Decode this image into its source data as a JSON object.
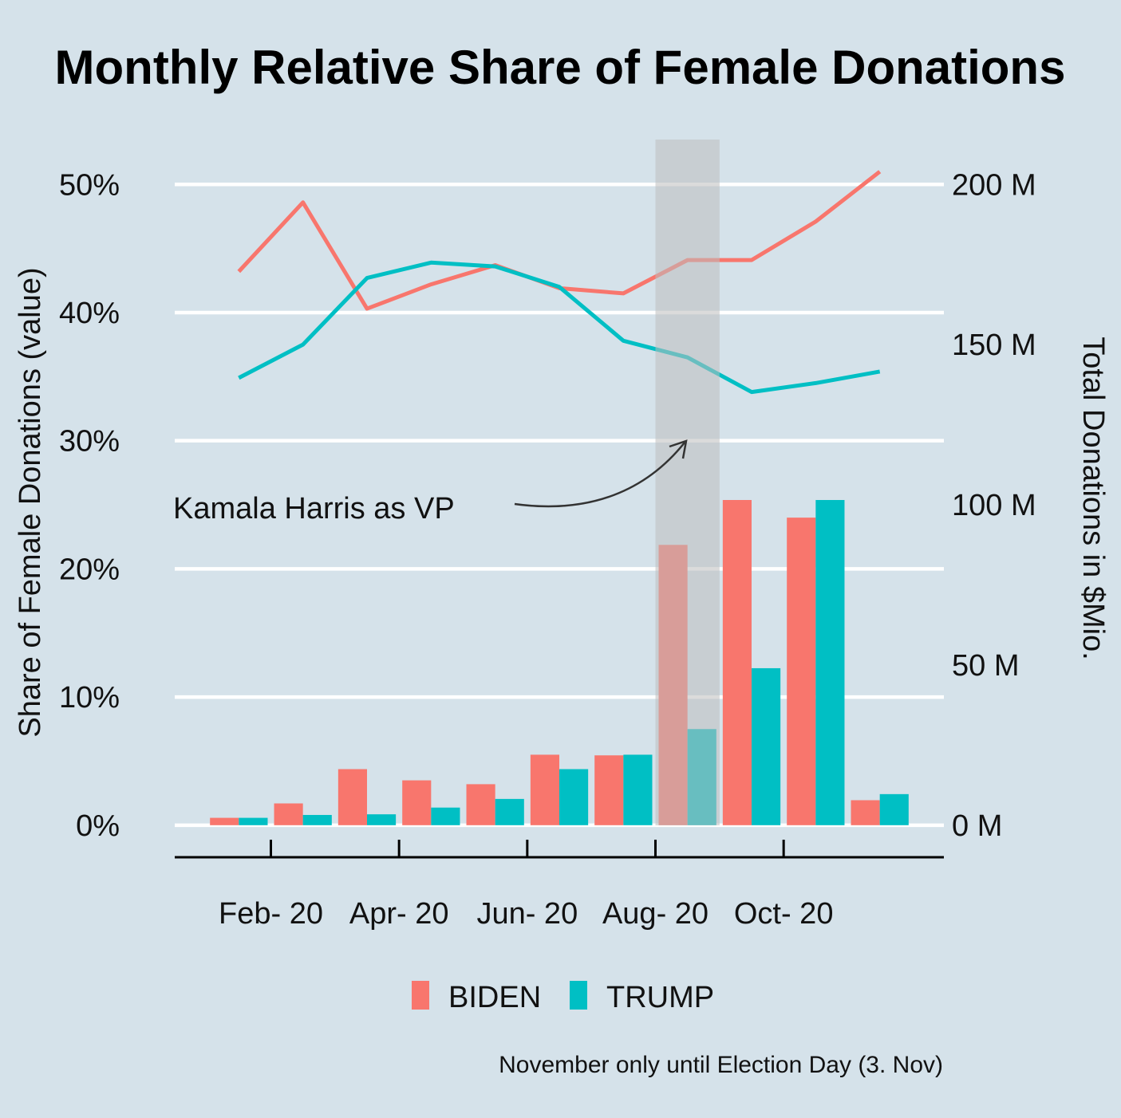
{
  "chart_data": {
    "type": "bar",
    "title": "Monthly Relative Share of Female Donations",
    "ylabel_left": "Share of Female Donations (value)",
    "ylabel_right": "Total Donations in $Mio.",
    "caption": "November only until Election Day (3. Nov)",
    "categories": [
      "2020-01",
      "2020-02",
      "2020-03",
      "2020-04",
      "2020-05",
      "2020-06",
      "2020-07",
      "2020-08",
      "2020-09",
      "2020-10",
      "2020-11"
    ],
    "x_ticks": [
      {
        "category": "2020-02",
        "label": "Feb- 20"
      },
      {
        "category": "2020-04",
        "label": "Apr- 20"
      },
      {
        "category": "2020-06",
        "label": "Jun- 20"
      },
      {
        "category": "2020-08",
        "label": "Aug- 20"
      },
      {
        "category": "2020-10",
        "label": "Oct- 20"
      }
    ],
    "y_left": {
      "ylim": [
        -2.5,
        53.5
      ],
      "ticks": [
        0,
        10,
        20,
        30,
        40,
        50
      ],
      "tick_labels": [
        "0%",
        "10%",
        "20%",
        "30%",
        "40%",
        "50%"
      ]
    },
    "y_right": {
      "ylim": [
        -10,
        214
      ],
      "ticks": [
        0,
        50,
        100,
        150,
        200
      ],
      "tick_labels": [
        "0 M",
        "50 M",
        "100 M",
        "150 M",
        "200 M"
      ]
    },
    "grid": true,
    "legend": {
      "position": "bottom",
      "entries": [
        "BIDEN",
        "TRUMP"
      ]
    },
    "series": [
      {
        "name": "BIDEN",
        "color": "#f8766d",
        "bar_values_mio": [
          2.3,
          6.8,
          17.5,
          14,
          12.8,
          22,
          21.8,
          87.5,
          101.5,
          96,
          7.8
        ],
        "share_values_pct": [
          43.2,
          48.6,
          40.3,
          42.2,
          43.7,
          41.9,
          41.5,
          44.1,
          44.1,
          47.1,
          51.0
        ]
      },
      {
        "name": "TRUMP",
        "color": "#00bfc4",
        "bar_values_mio": [
          2.3,
          3.2,
          3.4,
          5.5,
          8.2,
          17.5,
          22,
          30,
          49,
          101.5,
          9.7
        ],
        "share_values_pct": [
          34.9,
          37.5,
          42.7,
          43.9,
          43.6,
          42.0,
          37.8,
          36.5,
          33.8,
          34.5,
          35.4
        ]
      }
    ],
    "annotation": {
      "text": "Kamala Harris as VP",
      "highlight_category": "2020-08"
    }
  }
}
